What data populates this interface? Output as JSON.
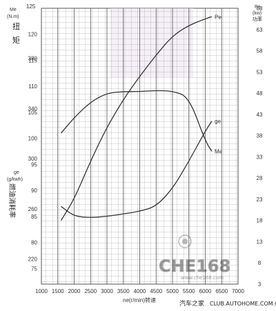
{
  "chart_data": {
    "type": "line",
    "x_axis": {
      "label": "ne(r/min)转速",
      "min": 1000,
      "max": 7000,
      "ticks": [
        1000,
        1500,
        2000,
        2500,
        3000,
        3500,
        4000,
        4500,
        5000,
        5500,
        6000,
        6500,
        7000
      ]
    },
    "left_axis": {
      "torque_title": "Me",
      "torque_unit": "(N.m)",
      "torque_name": [
        "扭",
        "矩"
      ],
      "torque_ticks": [
        120,
        115,
        110,
        105,
        100,
        95,
        90,
        85,
        80,
        75
      ],
      "torque_range": [
        72,
        125
      ],
      "fuel_title": "ge",
      "fuel_unit": "(g/kwh)",
      "fuel_name": "燃油消耗率",
      "fuel_ticks": [
        380,
        340,
        300,
        260,
        220
      ],
      "fuel_range": [
        200,
        420
      ]
    },
    "right_axis": {
      "title": "Pe",
      "unit": "(kw)",
      "name": "功率",
      "ticks": [
        68,
        63,
        58,
        53,
        48,
        43,
        38,
        33,
        28,
        23,
        18,
        13,
        8,
        3
      ],
      "range": [
        3,
        68
      ]
    },
    "top_labels": [
      "125",
      "Me"
    ],
    "series": [
      {
        "name": "Pe",
        "axis": "right",
        "color": "#333333",
        "x": [
          1600,
          2000,
          2500,
          3000,
          3500,
          4000,
          4500,
          5000,
          5500,
          6000,
          6200
        ],
        "y": [
          18,
          23,
          32,
          40,
          46.5,
          52,
          57,
          61.5,
          64,
          65.5,
          66
        ]
      },
      {
        "name": "Me",
        "axis": "left_torque",
        "color": "#333333",
        "x": [
          1600,
          2000,
          2500,
          3000,
          3500,
          4000,
          4500,
          5000,
          5500,
          6000,
          6200
        ],
        "y": [
          101,
          104,
          107,
          108.7,
          109,
          109,
          109.2,
          109.1,
          108,
          99.5,
          97.5
        ]
      },
      {
        "name": "ge",
        "axis": "left_fuel",
        "color": "#333333",
        "x": [
          1600,
          2000,
          2500,
          3000,
          3500,
          4000,
          4500,
          5000,
          5500,
          6000,
          6200
        ],
        "y": [
          262,
          254,
          253,
          254,
          256,
          258,
          262,
          276,
          298,
          322,
          330
        ]
      }
    ]
  },
  "watermark": {
    "brand": "汽车之家",
    "site": "CLUB.AUTOHOME.COM.CN",
    "logo_text": "CHE168",
    "logo_url": "www.che168.com"
  }
}
